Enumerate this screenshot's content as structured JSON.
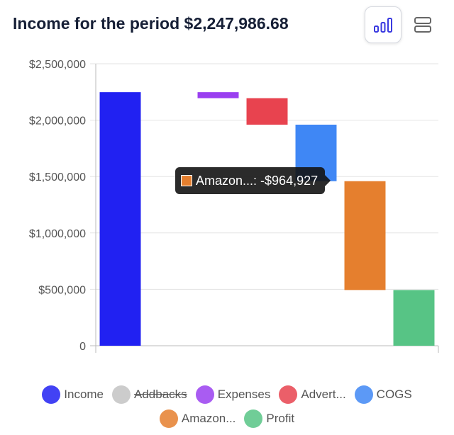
{
  "header": {
    "title": "Income for the period $2,247,986.68"
  },
  "toolbar": {
    "chart_view_icon": "bar-chart-icon",
    "list_view_icon": "list-view-icon"
  },
  "chart_data": {
    "type": "bar",
    "subtype": "waterfall",
    "title": "",
    "xlabel": "",
    "ylabel": "",
    "ylim": [
      0,
      2500000
    ],
    "y_ticks": [
      "$2,500,000",
      "$2,000,000",
      "$1,500,000",
      "$1,000,000",
      "$500,000",
      "0"
    ],
    "y_tick_values": [
      2500000,
      2000000,
      1500000,
      1000000,
      500000,
      0
    ],
    "grid": true,
    "legend_position": "bottom",
    "series": [
      {
        "name": "Income",
        "color": "#2121f2",
        "start": 0,
        "end": 2247987,
        "visible": true
      },
      {
        "name": "Addbacks",
        "color": "#cccccc",
        "start": 2247987,
        "end": 2247987,
        "visible": false
      },
      {
        "name": "Expenses",
        "color": "#9a3ff0",
        "start": 2247987,
        "end": 2195000,
        "visible": true
      },
      {
        "name": "Advert...",
        "color": "#e8434f",
        "start": 2195000,
        "end": 1960000,
        "visible": true
      },
      {
        "name": "COGS",
        "color": "#3f87f5",
        "start": 1960000,
        "end": 1459000,
        "visible": true
      },
      {
        "name": "Amazon...",
        "color": "#e57f2e",
        "start": 1459000,
        "end": 494000,
        "visible": true
      },
      {
        "name": "Profit",
        "color": "#57c485",
        "start": 0,
        "end": 494000,
        "visible": true
      }
    ],
    "tooltip": {
      "series": "Amazon...",
      "text": "Amazon...: -$964,927"
    }
  }
}
